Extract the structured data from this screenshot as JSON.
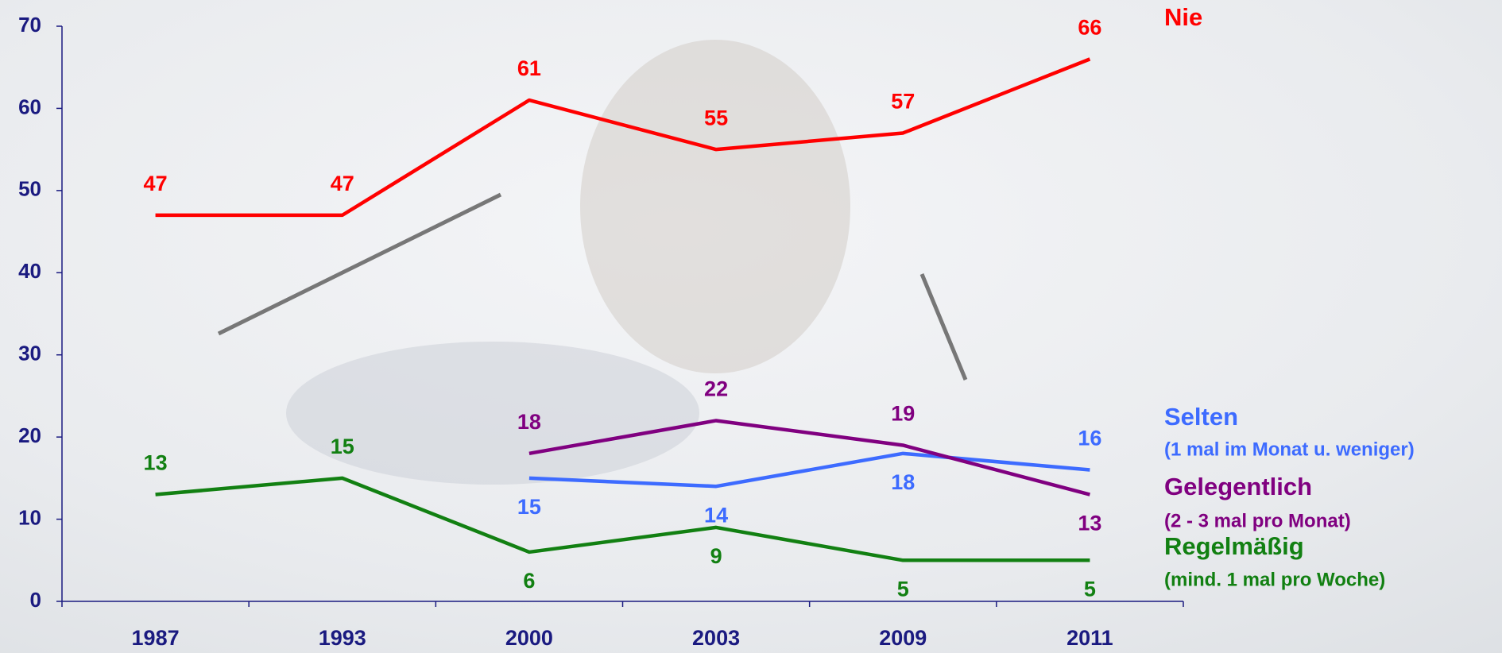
{
  "chart_data": {
    "type": "line",
    "categories": [
      "1987",
      "1993",
      "2000",
      "2003",
      "2009",
      "2011"
    ],
    "series": [
      {
        "name": "Nie",
        "color": "#ff0000",
        "values": [
          47,
          47,
          61,
          55,
          57,
          66
        ]
      },
      {
        "name": "Selten",
        "description": "(1 mal im Monat u. weniger)",
        "color": "#3d6bff",
        "values": [
          null,
          null,
          15,
          14,
          18,
          16
        ]
      },
      {
        "name": "Gelegentlich",
        "description": "(2 - 3 mal pro Monat)",
        "color": "#800080",
        "values": [
          null,
          null,
          18,
          22,
          19,
          13
        ]
      },
      {
        "name": "Regelmäßig",
        "description": "(mind. 1 mal pro Woche)",
        "color": "#128012",
        "values": [
          13,
          15,
          6,
          9,
          5,
          5
        ]
      }
    ],
    "ylim": [
      0,
      70
    ],
    "yticks": [
      0,
      10,
      20,
      30,
      40,
      50,
      60,
      70
    ],
    "axis_color": "#1a1a80"
  }
}
